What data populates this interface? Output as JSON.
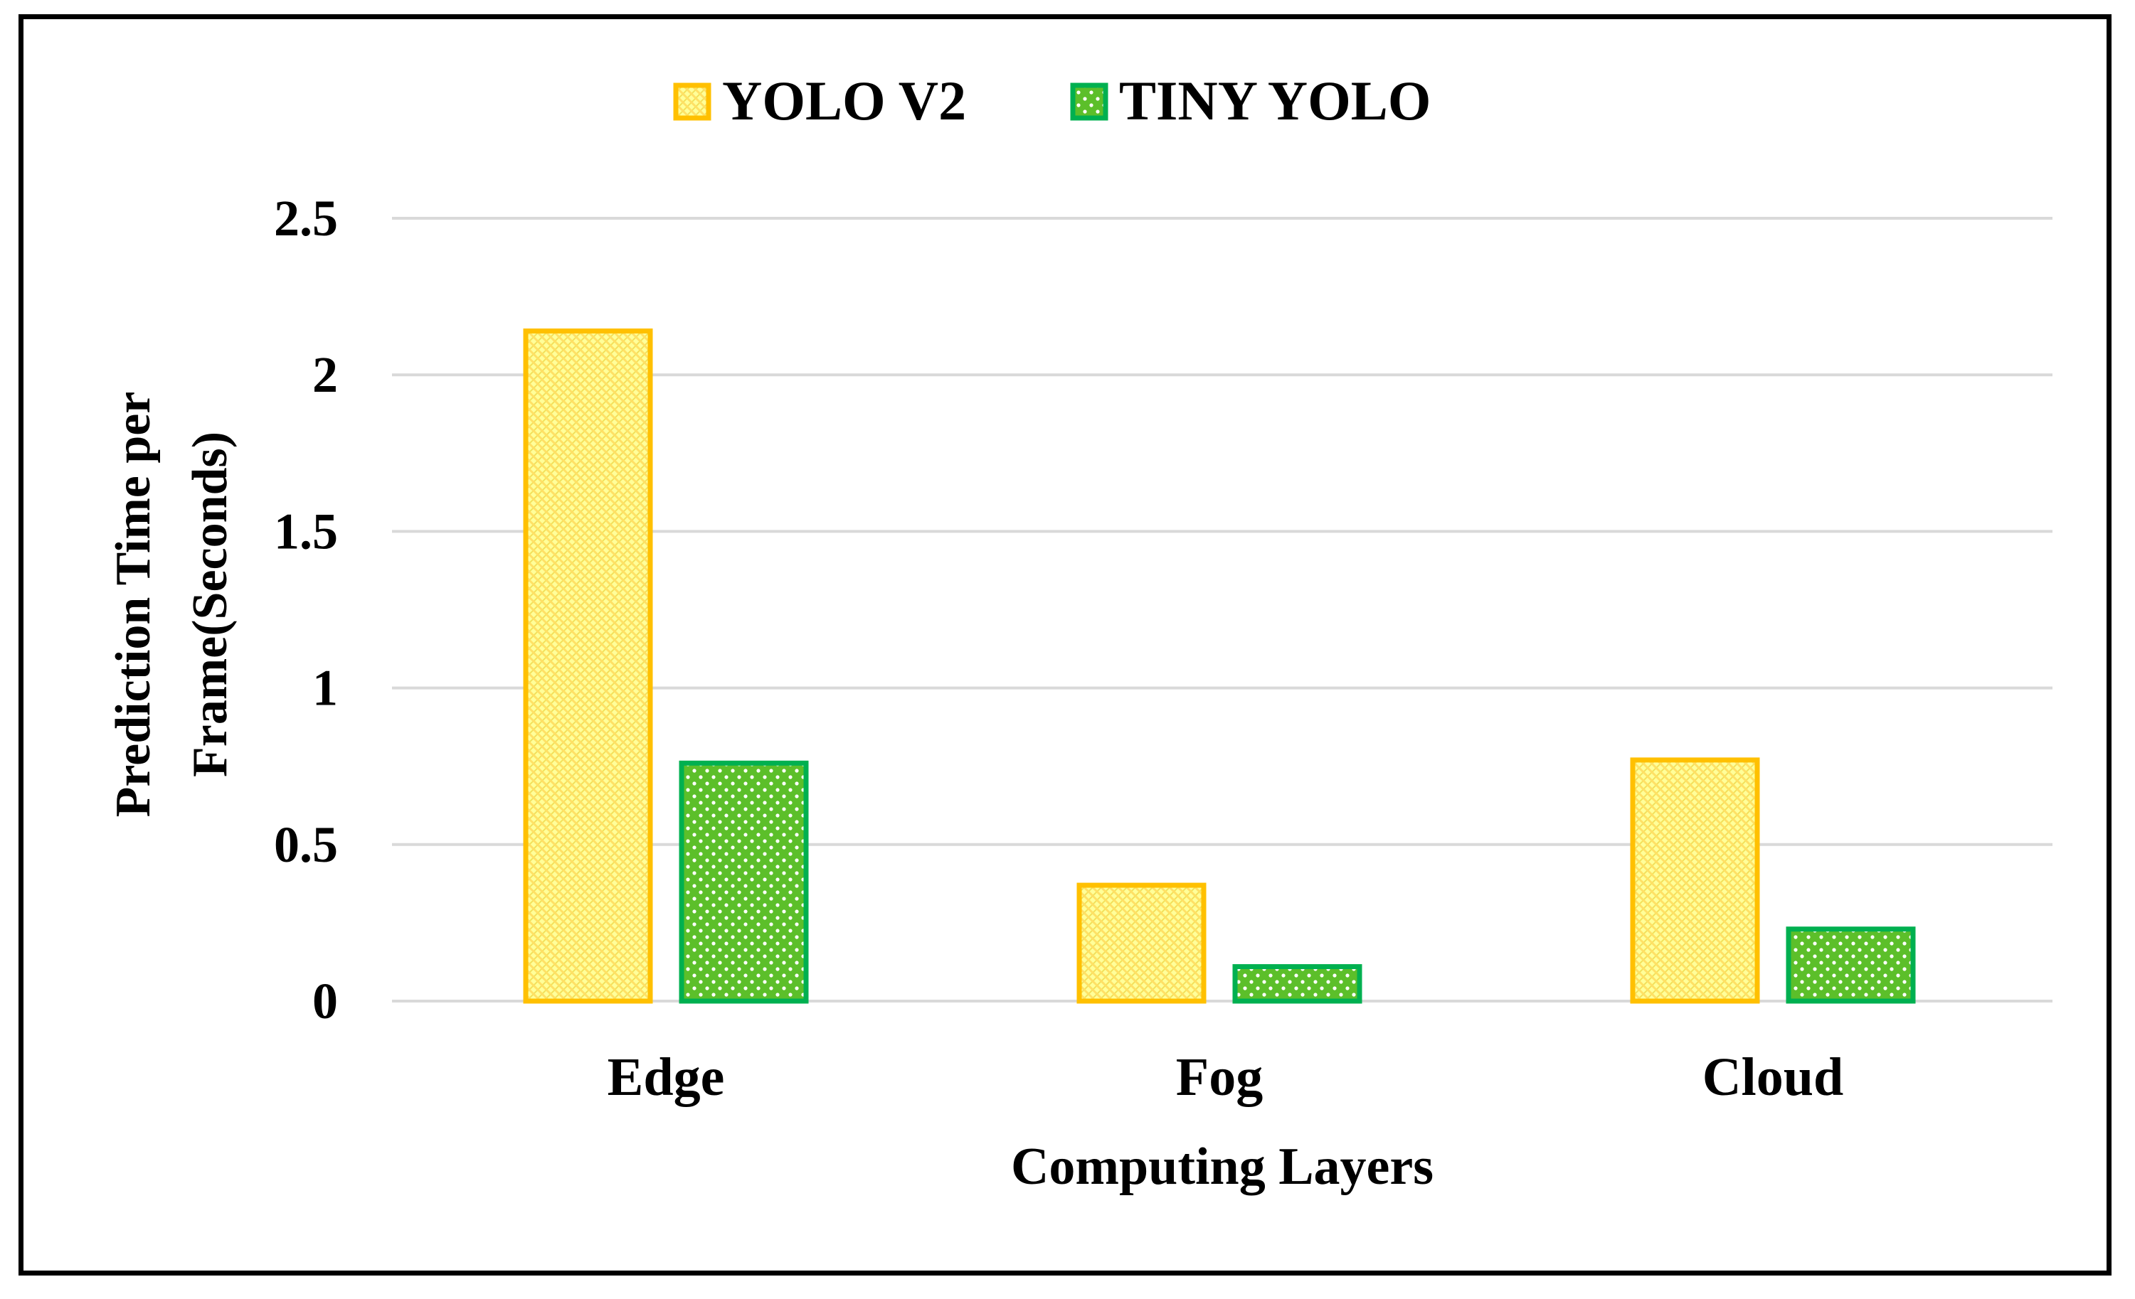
{
  "chart_data": {
    "type": "bar",
    "title": "",
    "xlabel": "Computing Layers",
    "ylabel_lines": [
      "Prediction Time per",
      "Frame(Seconds)"
    ],
    "categories": [
      "Edge",
      "Fog",
      "Cloud"
    ],
    "series": [
      {
        "name": "YOLO V2",
        "values": [
          2.14,
          0.37,
          0.77
        ],
        "color": "#FFC000",
        "fill": "#FFFF99",
        "pattern": "diagonal-hatch"
      },
      {
        "name": "TINY YOLO",
        "values": [
          0.76,
          0.11,
          0.23
        ],
        "color": "#00B050",
        "fill": "#66CC33",
        "pattern": "dots"
      }
    ],
    "ylim": [
      0,
      2.5
    ],
    "yticks": [
      "0",
      "0.5",
      "1",
      "1.5",
      "2",
      "2.5"
    ],
    "grid": true,
    "gridline_color": "#D9D9D9",
    "legend_position": "top-center"
  }
}
